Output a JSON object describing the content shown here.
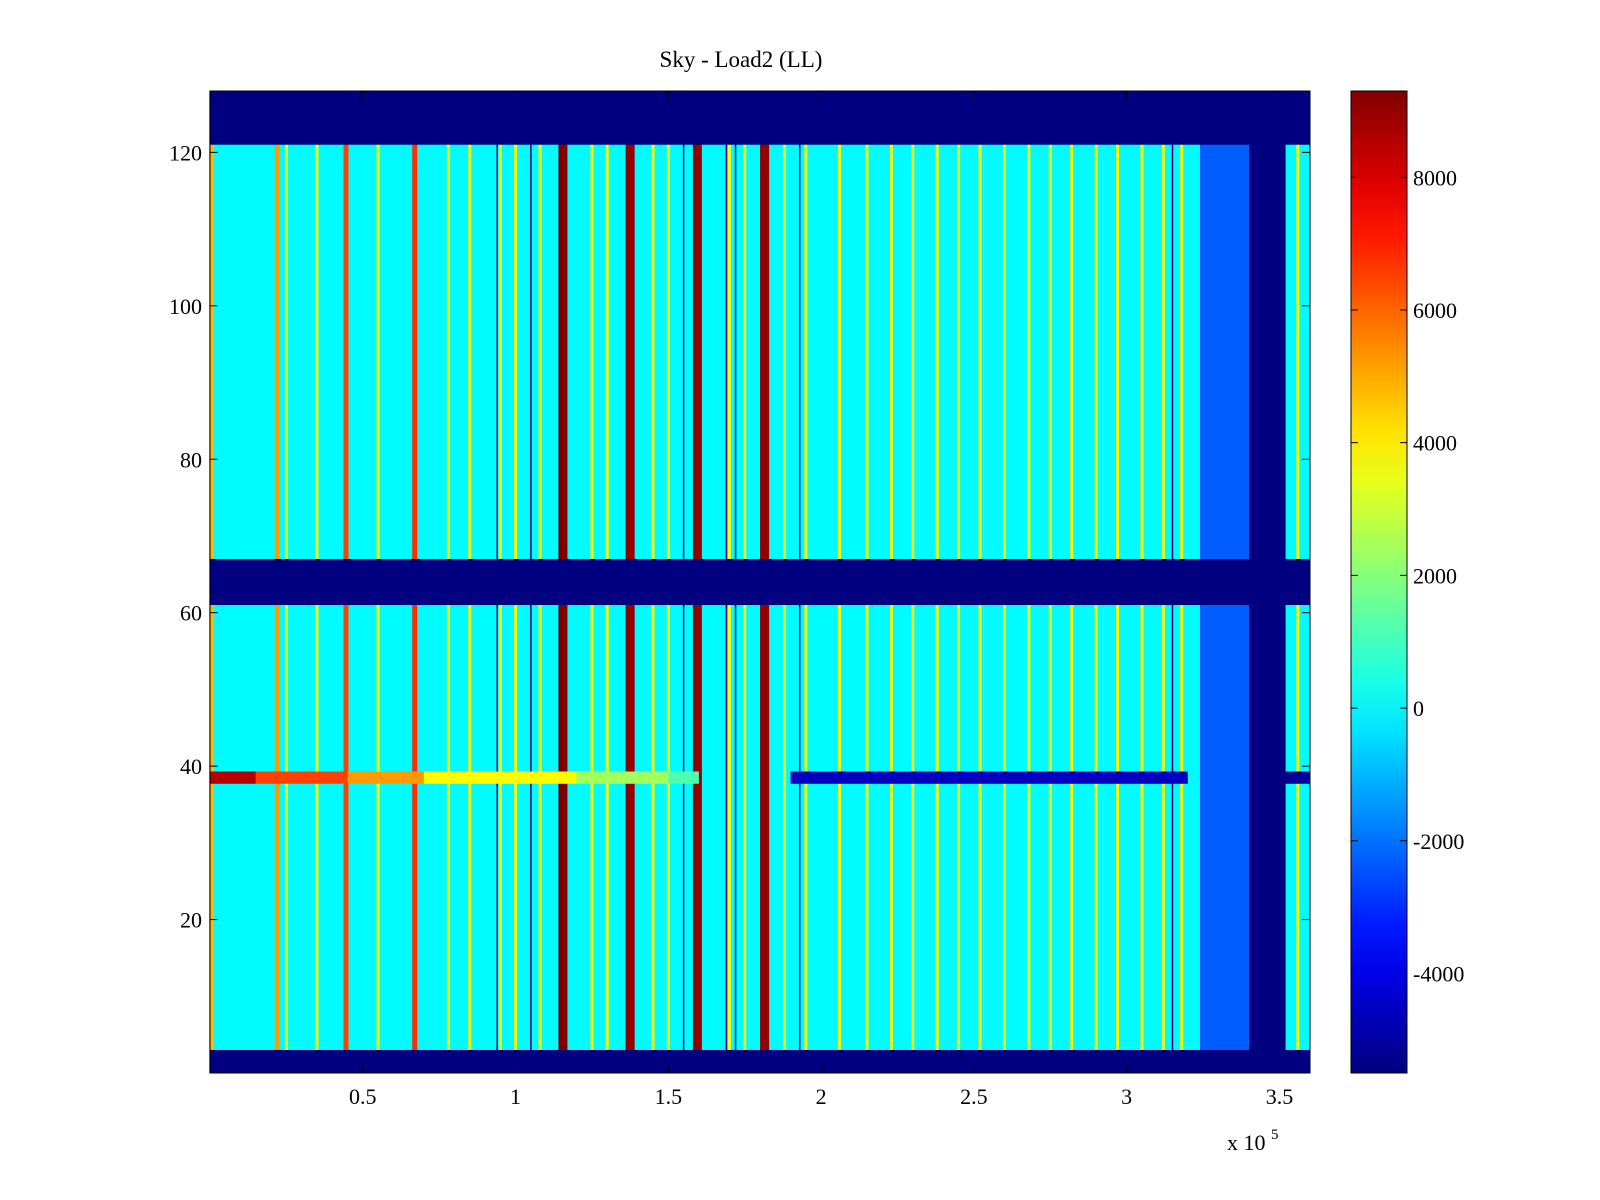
{
  "chart_data": {
    "type": "heatmap",
    "title": "Sky - Load2 (LL)",
    "xlabel": "",
    "ylabel": "",
    "x_scale_label": "x 10",
    "x_scale_exponent": "5",
    "xlim": [
      0,
      3.6
    ],
    "ylim": [
      0,
      128
    ],
    "x_ticks": [
      0.5,
      1,
      1.5,
      2,
      2.5,
      3,
      3.5
    ],
    "x_tick_labels": [
      "0.5",
      "1",
      "1.5",
      "2",
      "2.5",
      "3",
      "3.5"
    ],
    "y_ticks": [
      20,
      40,
      60,
      80,
      100,
      120
    ],
    "y_tick_labels": [
      "20",
      "40",
      "60",
      "80",
      "100",
      "120"
    ],
    "colorbar": {
      "colormap": "jet",
      "range": [
        -5500,
        9300
      ],
      "ticks": [
        -4000,
        -2000,
        0,
        2000,
        4000,
        6000,
        8000
      ],
      "tick_labels": [
        "-4000",
        "-2000",
        "0",
        "2000",
        "4000",
        "6000",
        "8000"
      ]
    },
    "background_value": 0,
    "masked_value": -5500,
    "masked_row_bands": [
      {
        "from": 0,
        "to": 3
      },
      {
        "from": 61,
        "to": 67
      },
      {
        "from": 121,
        "to": 128
      }
    ],
    "masked_column_bands": [
      {
        "from": 3.4,
        "to": 3.52
      }
    ],
    "low_region": {
      "from": 3.24,
      "to": 3.4,
      "value": -2300
    },
    "strong_columns": [
      {
        "x": 1.155,
        "value": 9300
      },
      {
        "x": 1.375,
        "value": 9000
      },
      {
        "x": 1.595,
        "value": 9000
      },
      {
        "x": 1.815,
        "value": 9000
      }
    ],
    "medium_columns": [
      {
        "x": 0.005,
        "value": 4800
      },
      {
        "x": 0.22,
        "value": 5200
      },
      {
        "x": 0.445,
        "value": 6500
      },
      {
        "x": 0.67,
        "value": 6800
      }
    ],
    "weak_columns": [
      0.25,
      0.35,
      0.55,
      0.78,
      0.85,
      0.95,
      1.0,
      1.08,
      1.25,
      1.3,
      1.45,
      1.5,
      1.7,
      1.75,
      1.88,
      1.95,
      2.06,
      2.15,
      2.23,
      2.3,
      2.38,
      2.45,
      2.52,
      2.6,
      2.68,
      2.75,
      2.82,
      2.9,
      2.97,
      3.05,
      3.12,
      3.18,
      3.56
    ],
    "weak_column_value": 3500,
    "dark_columns": [
      0.94,
      1.05,
      1.55,
      1.69,
      1.72,
      1.93,
      3.15
    ],
    "dark_column_value": -5500,
    "highlight_row": {
      "y": 38.5,
      "segments": [
        {
          "from": 0.0,
          "to": 0.15,
          "value": 8500
        },
        {
          "from": 0.15,
          "to": 0.45,
          "value": 6500
        },
        {
          "from": 0.45,
          "to": 0.7,
          "value": 5200
        },
        {
          "from": 0.7,
          "to": 1.2,
          "value": 3800
        },
        {
          "from": 1.2,
          "to": 1.5,
          "value": 2400
        },
        {
          "from": 1.5,
          "to": 1.6,
          "value": 1200
        },
        {
          "from": 1.9,
          "to": 3.2,
          "value": -4600
        },
        {
          "from": 3.52,
          "to": 3.6,
          "value": -5200
        }
      ]
    }
  }
}
